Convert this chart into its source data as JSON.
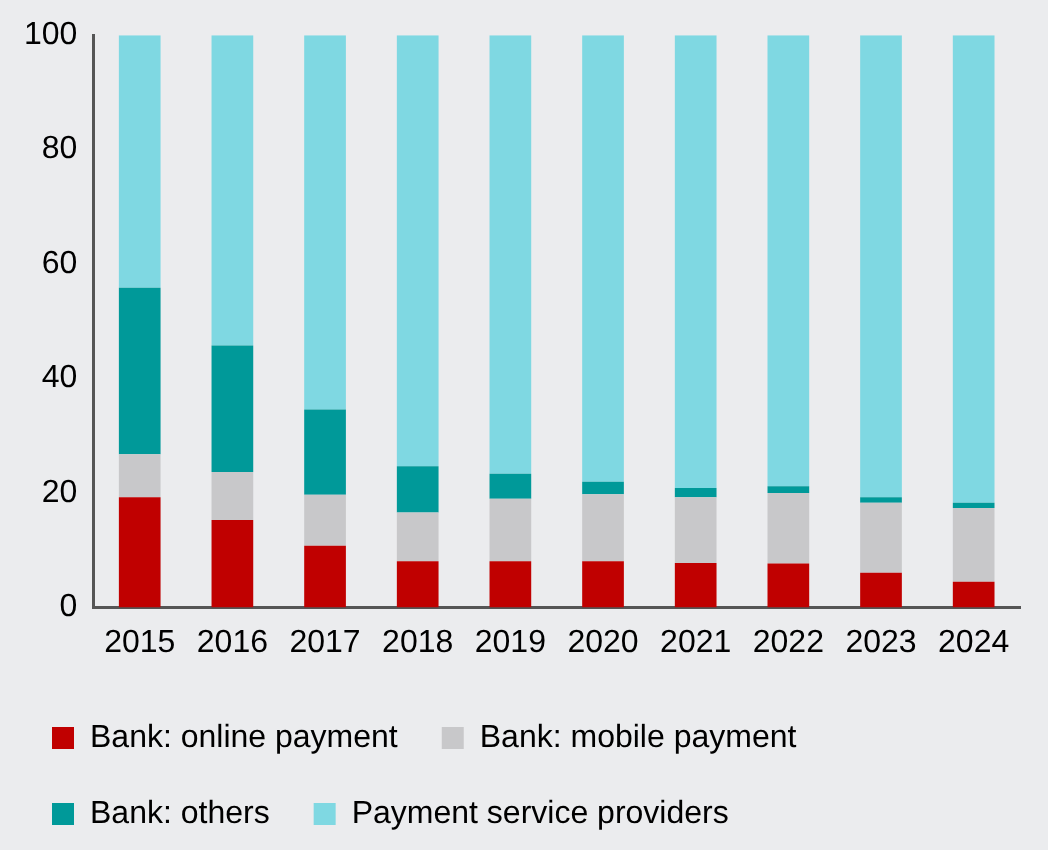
{
  "chart_data": {
    "type": "bar",
    "stacked": true,
    "categories": [
      "2015",
      "2016",
      "2017",
      "2018",
      "2019",
      "2020",
      "2021",
      "2022",
      "2023",
      "2024"
    ],
    "series": [
      {
        "name": "Bank: online payment",
        "color": "#c00000",
        "values": [
          19.3,
          15.3,
          10.8,
          8.1,
          8.1,
          8.1,
          7.8,
          7.7,
          6.1,
          4.5
        ]
      },
      {
        "name": "Bank: mobile payment",
        "color": "#c8c8ca",
        "values": [
          7.5,
          8.4,
          8.9,
          8.5,
          10.9,
          11.7,
          11.5,
          12.3,
          12.2,
          12.9
        ]
      },
      {
        "name": "Bank: others",
        "color": "#009999",
        "values": [
          29.1,
          22.1,
          14.9,
          8.1,
          4.4,
          2.2,
          1.6,
          1.2,
          1.0,
          0.9
        ]
      },
      {
        "name": "Payment service providers",
        "color": "#7fd8e2",
        "values": [
          44.1,
          54.2,
          65.4,
          75.3,
          76.6,
          78.0,
          79.1,
          78.8,
          80.7,
          81.7
        ]
      }
    ],
    "ylim": [
      0,
      100
    ],
    "yticks": [
      0,
      20,
      40,
      60,
      80,
      100
    ],
    "grid": false,
    "legend": "bottom"
  }
}
